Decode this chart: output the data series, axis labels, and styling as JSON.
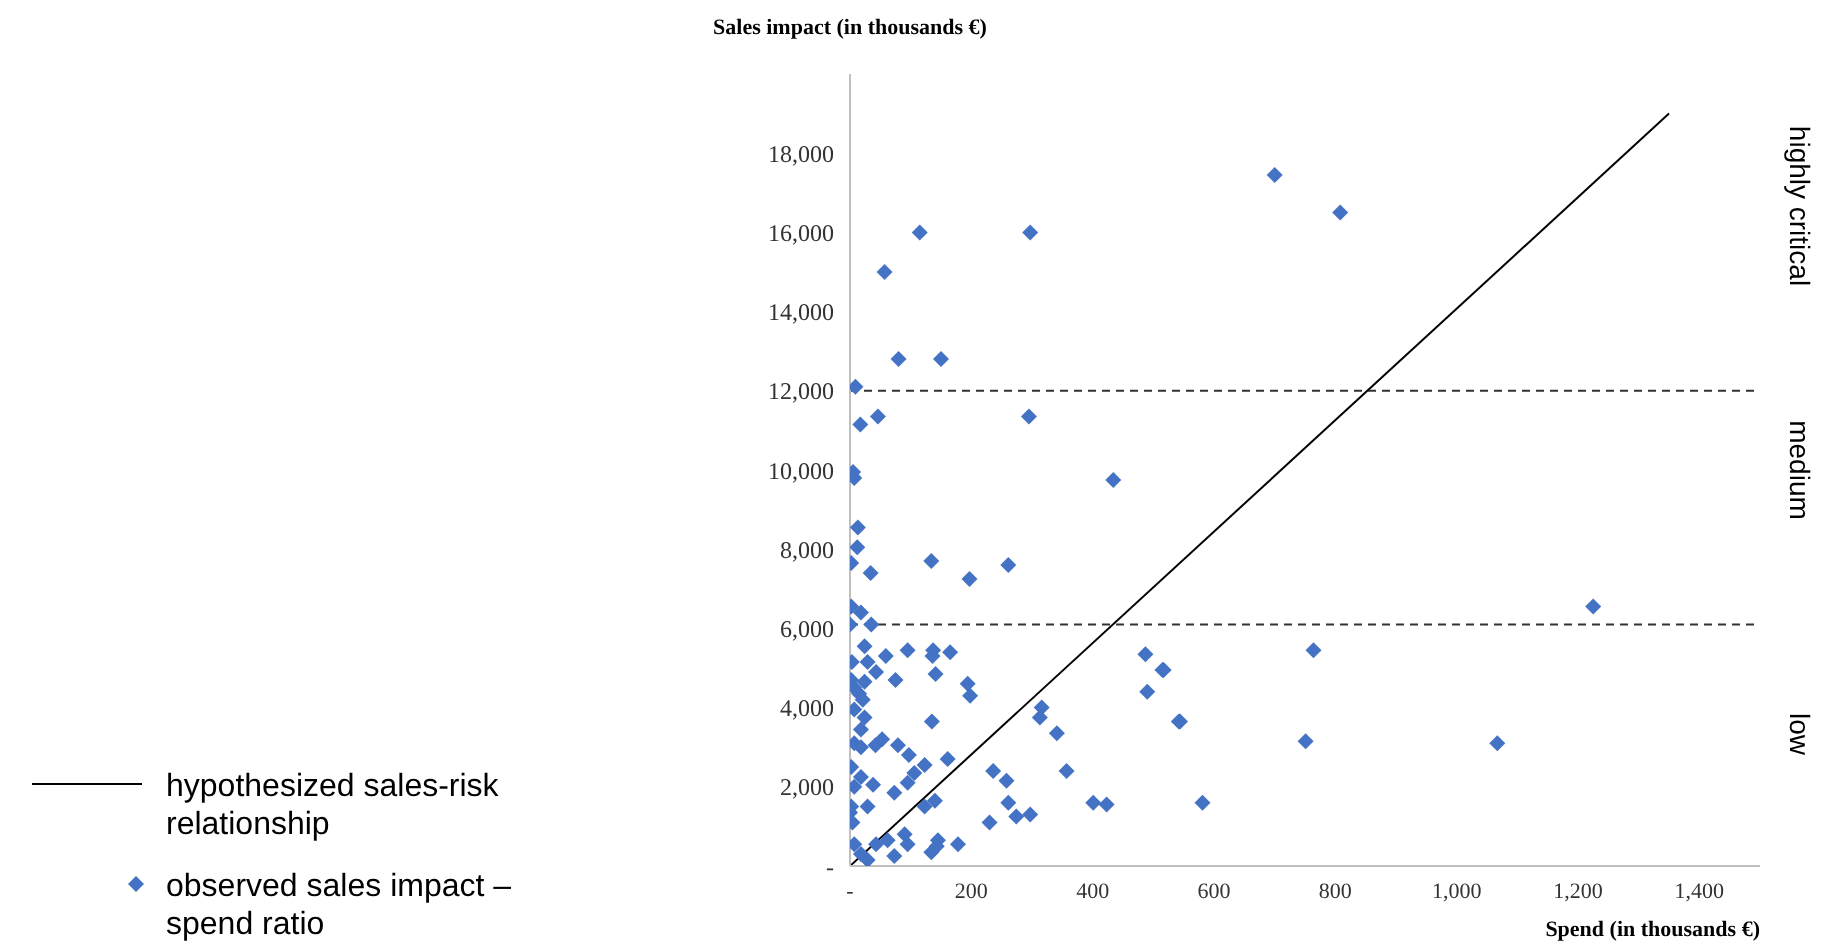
{
  "chart_data": {
    "type": "scatter",
    "xlabel": "Spend (in thousands €)",
    "ylabel": "Sales impact (in thousands €)",
    "xlim": [
      0,
      1500
    ],
    "xticks": [
      {
        "value": 0,
        "label": "-"
      },
      200,
      {
        "value": 400,
        "label": "400"
      },
      600,
      {
        "value": 800,
        "label": "800"
      },
      {
        "value": 1000,
        "label": "1,000"
      },
      {
        "value": 1200,
        "label": "1,200"
      },
      {
        "value": 1400,
        "label": "1,400"
      }
    ],
    "ylim": [
      0,
      20000
    ],
    "yticks": [
      {
        "value": 0,
        "label": "-"
      },
      {
        "value": 2000,
        "label": "2,000"
      },
      {
        "value": 4000,
        "label": "4,000"
      },
      {
        "value": 6000,
        "label": "6,000"
      },
      {
        "value": 8000,
        "label": "8,000"
      },
      {
        "value": 10000,
        "label": "10,000"
      },
      {
        "value": 12000,
        "label": "12,000"
      },
      {
        "value": 14000,
        "label": "14,000"
      },
      {
        "value": 16000,
        "label": "16,000"
      },
      {
        "value": 18000,
        "label": "18,000"
      }
    ],
    "series": [
      {
        "name": "hypothesized sales-risk relationship",
        "type": "line",
        "color": "#000000",
        "marker": "none",
        "line_style": "solid",
        "x": [
          0,
          1350
        ],
        "values": [
          0,
          19000
        ]
      },
      {
        "name": "observed sales impact – spend ratio",
        "type": "scatter",
        "color": "#4472c4",
        "marker": "diamond",
        "x": [
          115,
          297,
          57,
          80,
          150,
          9,
          17,
          46,
          295,
          5,
          7,
          434,
          700,
          808,
          1225,
          764,
          517,
          544,
          751,
          1067,
          581,
          13,
          12,
          2,
          34,
          134,
          261,
          197,
          2,
          18,
          0,
          35,
          24,
          3,
          29,
          59,
          95,
          43,
          75,
          137,
          136,
          165,
          141,
          194,
          198,
          135,
          42,
          53,
          79,
          97,
          161,
          123,
          106,
          95,
          73,
          38,
          18,
          7,
          29,
          123,
          140,
          236,
          258,
          261,
          274,
          297,
          230,
          316,
          313,
          341,
          357,
          401,
          423,
          487,
          515,
          490,
          542,
          145,
          143,
          178,
          134,
          90,
          95,
          73,
          43,
          62,
          7,
          18,
          29,
          2,
          7,
          15,
          24,
          21,
          7,
          24,
          18,
          7,
          18,
          2,
          2,
          0,
          4
        ],
        "values": [
          16000,
          16000,
          15000,
          12800,
          12800,
          12100,
          11150,
          11350,
          11350,
          9950,
          9800,
          9750,
          17450,
          16500,
          6550,
          5450,
          4950,
          3650,
          3150,
          3100,
          1600,
          8550,
          8050,
          7650,
          7400,
          7700,
          7600,
          7250,
          6550,
          6400,
          6100,
          6100,
          5550,
          5150,
          5150,
          5300,
          5450,
          4900,
          4700,
          5450,
          5300,
          5400,
          4850,
          4600,
          4300,
          3650,
          3050,
          3200,
          3050,
          2800,
          2700,
          2550,
          2350,
          2100,
          1850,
          2050,
          2250,
          2000,
          1500,
          1500,
          1650,
          2400,
          2150,
          1600,
          1250,
          1300,
          1100,
          4000,
          3750,
          3350,
          2400,
          1600,
          1550,
          5350,
          4950,
          4400,
          3650,
          650,
          500,
          550,
          350,
          800,
          550,
          250,
          550,
          650,
          550,
          300,
          150,
          4700,
          4500,
          4350,
          4650,
          4200,
          3950,
          3750,
          3450,
          3100,
          3000,
          2500,
          1500,
          1350,
          1100
        ]
      }
    ],
    "ref_lines": [
      {
        "axis": "y",
        "value": 12000,
        "line_style": "dashed",
        "color": "#333333"
      },
      {
        "axis": "y",
        "value": 6100,
        "line_style": "dashed",
        "color": "#333333"
      }
    ],
    "annotations": [
      "highly critical",
      "medium",
      "low"
    ],
    "legend": "bottom left",
    "grid": false
  }
}
